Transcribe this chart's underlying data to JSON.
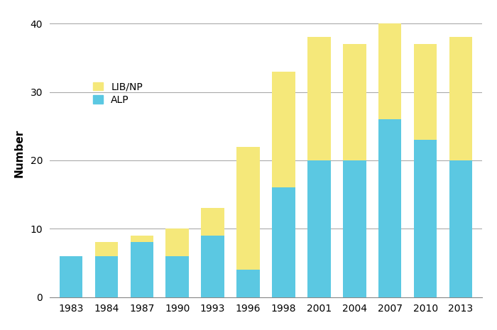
{
  "years": [
    "1983",
    "1984",
    "1987",
    "1990",
    "1993",
    "1996",
    "1998",
    "2001",
    "2004",
    "2007",
    "2010",
    "2013"
  ],
  "alp": [
    6,
    6,
    8,
    6,
    9,
    4,
    16,
    20,
    20,
    26,
    23,
    20
  ],
  "libnp": [
    0,
    2,
    1,
    4,
    4,
    18,
    17,
    18,
    17,
    14,
    14,
    18
  ],
  "alp_color": "#5BC8E2",
  "libnp_color": "#F5E87A",
  "ylabel": "Number",
  "ylim": [
    0,
    42
  ],
  "yticks": [
    0,
    10,
    20,
    30,
    40
  ],
  "bg_color": "#ffffff",
  "grid_color": "#aaaaaa",
  "bar_width": 0.65,
  "legend_labels": [
    "LIB/NP",
    "ALP"
  ],
  "legend_colors": [
    "#F5E87A",
    "#5BC8E2"
  ],
  "tick_fontsize": 10,
  "ylabel_fontsize": 11,
  "legend_fontsize": 10
}
